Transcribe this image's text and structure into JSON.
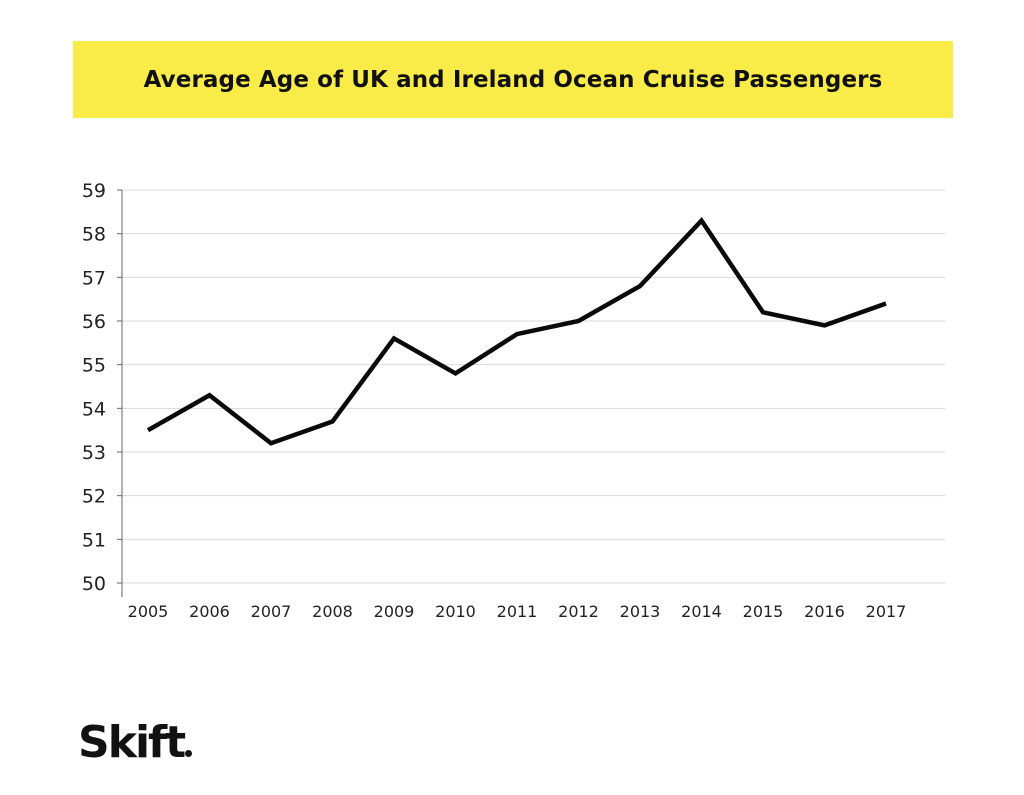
{
  "banner_color": "#f9ec48",
  "line_color": "#0a0a0a",
  "grid_color": "#d9d9d9",
  "chart_data": {
    "type": "line",
    "title": "Average Age of UK and Ireland Ocean Cruise Passengers",
    "xlabel": "",
    "ylabel": "",
    "categories": [
      "2005",
      "2006",
      "2007",
      "2008",
      "2009",
      "2010",
      "2011",
      "2012",
      "2013",
      "2014",
      "2015",
      "2016",
      "2017"
    ],
    "series": [
      {
        "values": [
          53.5,
          54.3,
          53.2,
          53.7,
          55.6,
          54.8,
          55.7,
          56.0,
          56.8,
          58.3,
          56.2,
          55.9,
          56.4
        ]
      }
    ],
    "ylim": [
      50,
      59
    ],
    "yticks": [
      "50",
      "51",
      "52",
      "53",
      "54",
      "55",
      "56",
      "57",
      "58",
      "59"
    ],
    "grid": true,
    "legend": "none"
  },
  "logo": {
    "text": "Skift"
  }
}
